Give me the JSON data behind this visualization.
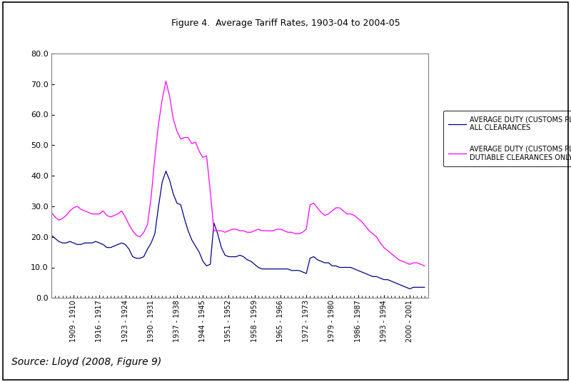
{
  "title": "Figure 4.  Average Tariff Rates, 1903-04 to 2004-05",
  "source_text": "Source: Lloyd (2008, Figure 9)",
  "ylim": [
    0.0,
    80.0
  ],
  "yticks": [
    0.0,
    10.0,
    20.0,
    30.0,
    40.0,
    50.0,
    60.0,
    70.0,
    80.0
  ],
  "xtick_labels": [
    "1909 - 1910",
    "1916 - 1917",
    "1923 - 1924",
    "1930 - 1931",
    "1937 - 1938",
    "1944 - 1945",
    "1951 - 1952",
    "1958 - 1959",
    "1965 - 1966",
    "1972 - 1973",
    "1979 - 1980",
    "1986 - 1987",
    "1993 - 1994",
    "2000 - 2001"
  ],
  "line1_color": "#00008B",
  "line2_color": "#FF00FF",
  "line1_label": "AVERAGE DUTY (CUSTOMS PLUS PRIMAGE, NET) -\nALL CLEARANCES",
  "line2_label": "AVERAGE DUTY (CUSTOMS PLUS PRIMAGE, NET) -\nDUTIABLE CLEARANCES ONLY, ADJUSTED",
  "legend_fontsize": 7,
  "title_fontsize": 9,
  "years": [
    1903,
    1904,
    1905,
    1906,
    1907,
    1908,
    1909,
    1910,
    1911,
    1912,
    1913,
    1914,
    1915,
    1916,
    1917,
    1918,
    1919,
    1920,
    1921,
    1922,
    1923,
    1924,
    1925,
    1926,
    1927,
    1928,
    1929,
    1930,
    1931,
    1932,
    1933,
    1934,
    1935,
    1936,
    1937,
    1938,
    1939,
    1940,
    1941,
    1942,
    1943,
    1944,
    1945,
    1946,
    1947,
    1948,
    1949,
    1950,
    1951,
    1952,
    1953,
    1954,
    1955,
    1956,
    1957,
    1958,
    1959,
    1960,
    1961,
    1962,
    1963,
    1964,
    1965,
    1966,
    1967,
    1968,
    1969,
    1970,
    1971,
    1972,
    1973,
    1974,
    1975,
    1976,
    1977,
    1978,
    1979,
    1980,
    1981,
    1982,
    1983,
    1984,
    1985,
    1986,
    1987,
    1988,
    1989,
    1990,
    1991,
    1992,
    1993,
    1994,
    1995,
    1996,
    1997,
    1998,
    1999,
    2000,
    2001,
    2002,
    2003,
    2004
  ],
  "blue_values": [
    20.5,
    19.5,
    18.5,
    18.0,
    18.0,
    18.5,
    18.0,
    17.5,
    17.5,
    18.0,
    18.0,
    18.0,
    18.5,
    18.0,
    17.5,
    16.5,
    16.5,
    17.0,
    17.5,
    18.0,
    17.5,
    16.0,
    13.5,
    13.0,
    13.0,
    13.5,
    16.0,
    18.0,
    21.0,
    30.0,
    38.0,
    41.5,
    38.5,
    34.0,
    31.0,
    30.5,
    26.0,
    22.0,
    19.0,
    17.0,
    15.0,
    12.0,
    10.5,
    11.0,
    24.5,
    21.0,
    16.5,
    14.0,
    13.5,
    13.5,
    13.5,
    14.0,
    13.5,
    12.5,
    12.0,
    11.0,
    10.0,
    9.5,
    9.5,
    9.5,
    9.5,
    9.5,
    9.5,
    9.5,
    9.5,
    9.0,
    9.0,
    9.0,
    8.5,
    8.0,
    13.0,
    13.5,
    12.5,
    12.0,
    11.5,
    11.5,
    10.5,
    10.5,
    10.0,
    10.0,
    10.0,
    10.0,
    9.5,
    9.0,
    8.5,
    8.0,
    7.5,
    7.0,
    7.0,
    6.5,
    6.0,
    6.0,
    5.5,
    5.0,
    4.5,
    4.0,
    3.5,
    3.0,
    3.5,
    3.5,
    3.5,
    3.5
  ],
  "pink_values": [
    28.0,
    26.5,
    25.5,
    26.0,
    27.0,
    28.5,
    29.5,
    30.0,
    29.0,
    28.5,
    28.0,
    27.5,
    27.5,
    27.5,
    28.5,
    27.0,
    26.5,
    27.0,
    27.5,
    28.5,
    26.5,
    24.0,
    22.0,
    20.5,
    20.0,
    21.5,
    24.0,
    33.0,
    46.0,
    57.0,
    65.0,
    71.0,
    66.0,
    58.5,
    54.5,
    52.0,
    52.5,
    52.5,
    50.5,
    51.0,
    48.0,
    46.0,
    46.5,
    35.0,
    22.0,
    22.0,
    22.0,
    21.5,
    22.0,
    22.5,
    22.5,
    22.0,
    22.0,
    21.5,
    21.5,
    22.0,
    22.5,
    22.0,
    22.0,
    22.0,
    22.0,
    22.5,
    22.5,
    22.0,
    21.5,
    21.5,
    21.0,
    21.0,
    21.5,
    22.5,
    30.5,
    31.0,
    29.5,
    28.0,
    27.0,
    27.5,
    28.5,
    29.5,
    29.5,
    28.5,
    27.5,
    27.5,
    27.0,
    26.0,
    25.0,
    23.5,
    22.0,
    21.0,
    20.0,
    18.0,
    16.5,
    15.5,
    14.5,
    13.5,
    12.5,
    12.0,
    11.5,
    11.0,
    11.5,
    11.5,
    11.0,
    10.5
  ],
  "outer_box_color": "#000000",
  "plot_box_color": "#808080"
}
